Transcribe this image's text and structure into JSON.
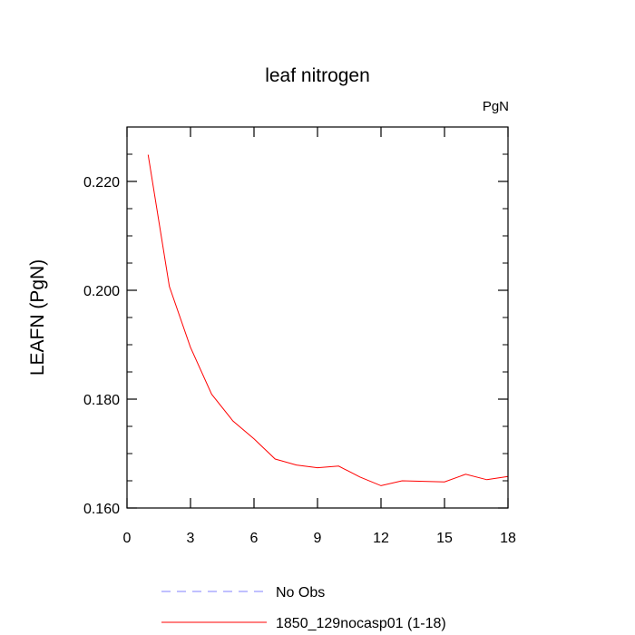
{
  "chart_data": {
    "type": "line",
    "title": "leaf nitrogen",
    "units_label": "PgN",
    "ylabel": "LEAFN  (PgN)",
    "xlabel": "",
    "xlim": [
      0,
      18
    ],
    "ylim": [
      0.16,
      0.23
    ],
    "x_ticks": [
      0,
      3,
      6,
      9,
      12,
      15,
      18
    ],
    "x_tick_labels": [
      "0",
      "3",
      "6",
      "9",
      "12",
      "15",
      "18"
    ],
    "x_minor_ticks": [],
    "y_ticks": [
      0.16,
      0.18,
      0.2,
      0.22
    ],
    "y_tick_labels": [
      "0.160",
      "0.180",
      "0.200",
      "0.220"
    ],
    "y_minor_step": 0.005,
    "grid": false,
    "legend_position": "bottom-left",
    "series": [
      {
        "name": "No Obs",
        "color": "#8080ff",
        "style": "dashed",
        "x": [],
        "y": []
      },
      {
        "name": "1850_129nocasp01 (1-18)",
        "color": "#ff0000",
        "style": "solid",
        "x": [
          1,
          2,
          3,
          4,
          5,
          6,
          7,
          8,
          9,
          10,
          11,
          12,
          13,
          14,
          15,
          16,
          17,
          18
        ],
        "y": [
          0.2249,
          0.2007,
          0.1895,
          0.1809,
          0.176,
          0.1727,
          0.169,
          0.1679,
          0.1674,
          0.1677,
          0.1657,
          0.1641,
          0.165,
          0.1649,
          0.1648,
          0.1662,
          0.1652,
          0.1658
        ]
      }
    ]
  }
}
